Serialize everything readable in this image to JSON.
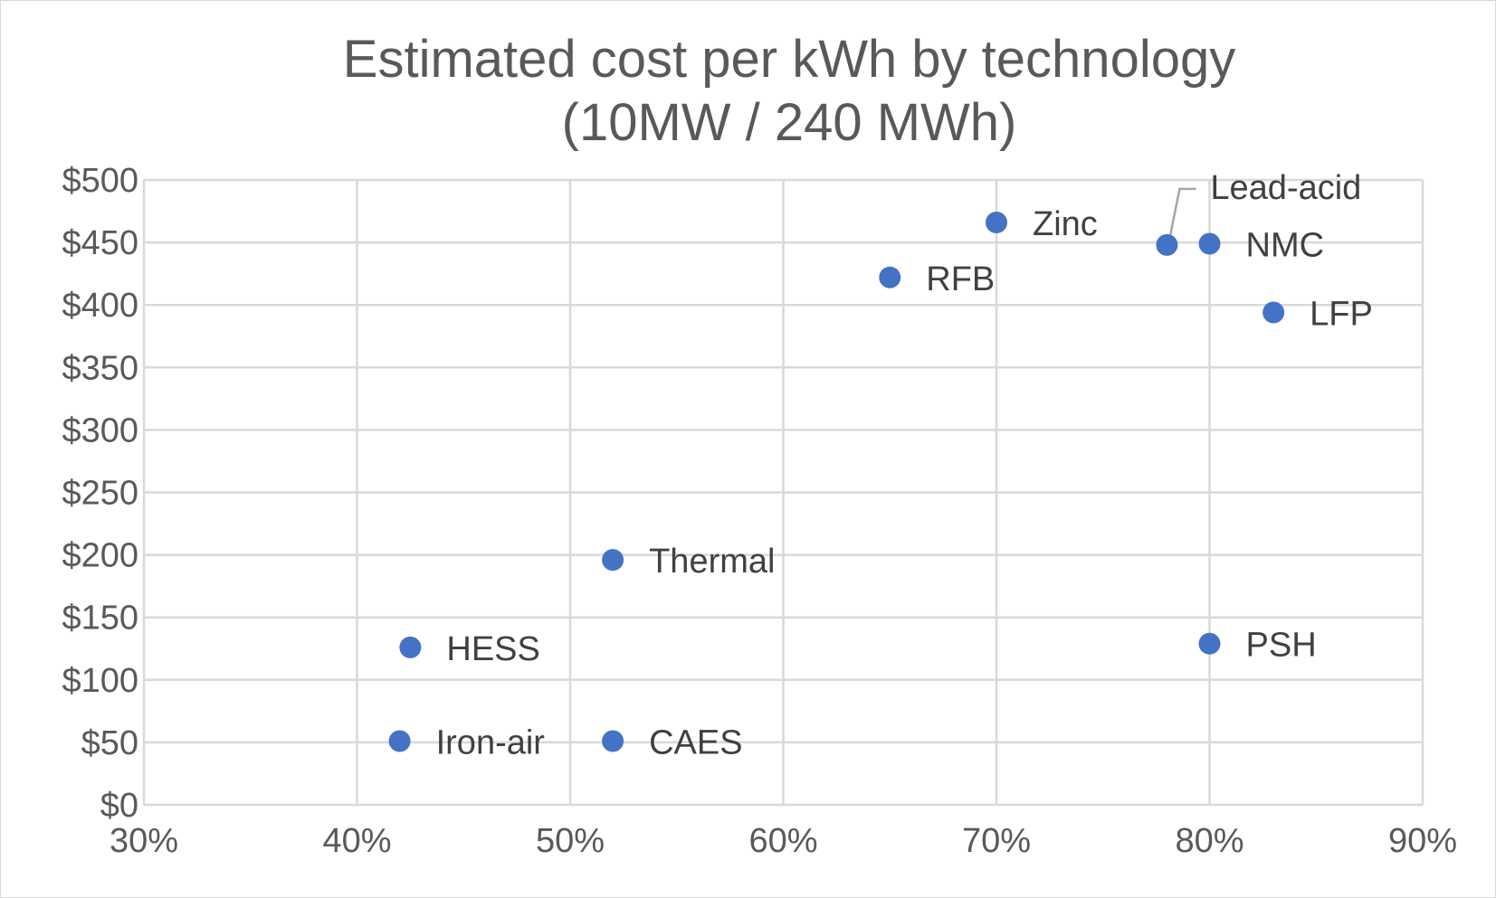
{
  "chart_data": {
    "type": "scatter",
    "title": [
      "Estimated cost per kWh by technology",
      "(10MW / 240 MWh)"
    ],
    "xlabel": "",
    "ylabel": "",
    "xlim": [
      0.3,
      0.9
    ],
    "ylim": [
      0,
      500
    ],
    "x_ticks": [
      0.3,
      0.4,
      0.5,
      0.6,
      0.7,
      0.8,
      0.9
    ],
    "x_tick_labels": [
      "30%",
      "40%",
      "50%",
      "60%",
      "70%",
      "80%",
      "90%"
    ],
    "y_ticks": [
      0,
      50,
      100,
      150,
      200,
      250,
      300,
      350,
      400,
      450,
      500
    ],
    "y_tick_labels": [
      "$0",
      "$50",
      "$100",
      "$150",
      "$200",
      "$250",
      "$300",
      "$350",
      "$400",
      "$450",
      "$500"
    ],
    "grid": true,
    "legend": "none",
    "marker_color": "#4472c4",
    "points": [
      {
        "label": "Zinc",
        "x": 0.7,
        "y": 466
      },
      {
        "label": "Lead-acid",
        "x": 0.78,
        "y": 448
      },
      {
        "label": "NMC",
        "x": 0.8,
        "y": 449
      },
      {
        "label": "RFB",
        "x": 0.65,
        "y": 422
      },
      {
        "label": "LFP",
        "x": 0.83,
        "y": 394
      },
      {
        "label": "Thermal",
        "x": 0.52,
        "y": 196
      },
      {
        "label": "HESS",
        "x": 0.425,
        "y": 126
      },
      {
        "label": "PSH",
        "x": 0.8,
        "y": 129
      },
      {
        "label": "Iron-air",
        "x": 0.42,
        "y": 51
      },
      {
        "label": "CAES",
        "x": 0.52,
        "y": 51
      }
    ]
  }
}
